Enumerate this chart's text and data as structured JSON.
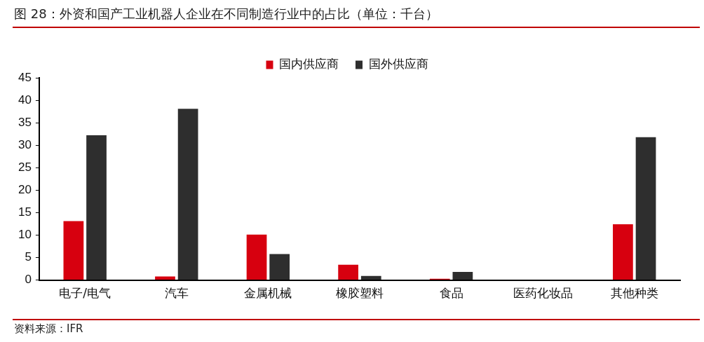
{
  "chart_data": {
    "type": "bar",
    "title": "图 28：外资和国产工业机器人企业在不同制造行业中的占比（单位：千台）",
    "categories": [
      "电子/电气",
      "汽车",
      "金属机械",
      "橡胶塑料",
      "食品",
      "医药化妆品",
      "其他种类"
    ],
    "series": [
      {
        "name": "国内供应商",
        "color": "#d7000f",
        "values": [
          13.1,
          0.8,
          10.1,
          3.4,
          0.3,
          0,
          12.4
        ]
      },
      {
        "name": "国外供应商",
        "color": "#2e2e2e",
        "values": [
          32.2,
          38.1,
          5.8,
          0.9,
          1.8,
          0.1,
          31.8
        ]
      }
    ],
    "ylim": [
      0,
      45
    ],
    "yticks": [
      0,
      5,
      10,
      15,
      20,
      25,
      30,
      35,
      40,
      45
    ],
    "grid": false,
    "legend": "top",
    "annotations": [
      "资料来源：IFR"
    ]
  }
}
